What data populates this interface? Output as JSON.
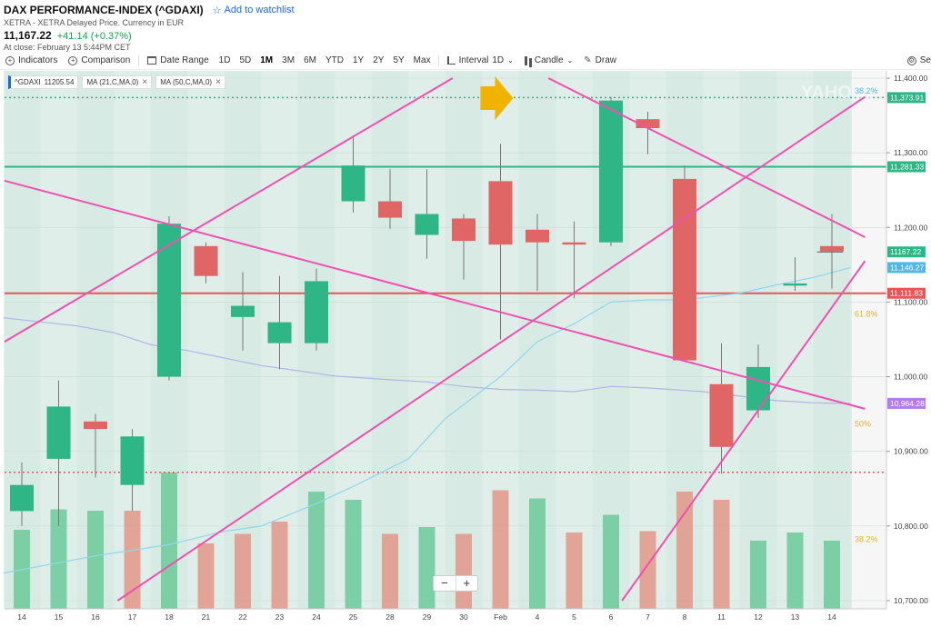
{
  "header": {
    "title": "DAX PERFORMANCE-INDEX (^GDAXI)",
    "watchlist_label": "Add to watchlist",
    "exchange": "XETRA - XETRA Delayed Price. Currency in EUR",
    "price": "11,167.22",
    "change": "+41.14 (+0.37%)",
    "close_time": "At close: February 13 5:44PM CET"
  },
  "toolbar": {
    "indicators": "Indicators",
    "comparison": "Comparison",
    "date_range": "Date Range",
    "ranges": [
      "1D",
      "5D",
      "1M",
      "3M",
      "6M",
      "YTD",
      "1Y",
      "2Y",
      "5Y",
      "Max"
    ],
    "selected_range": "1M",
    "interval": "Interval",
    "interval_value": "1D",
    "candle": "Candle",
    "draw": "Draw",
    "settings_partial": "Se"
  },
  "legend": {
    "symbol": "^GDAXI",
    "symbol_value": "11205.54",
    "ma21": "MA (21,C,MA,0)",
    "ma50": "MA (50,C,MA,0)"
  },
  "zoom": {
    "minus": "−",
    "plus": "+"
  },
  "chart_data": {
    "type": "candlestick",
    "ylim": [
      10700,
      11400
    ],
    "x_tick_labels": [
      "14",
      "15",
      "16",
      "17",
      "18",
      "21",
      "22",
      "23",
      "24",
      "25",
      "28",
      "29",
      "30",
      "Feb",
      "4",
      "5",
      "6",
      "7",
      "8",
      "11",
      "12",
      "13",
      "14"
    ],
    "y_tick_labels": [
      "11,400.00",
      "11,300.00",
      "11,200.00",
      "11,100.00",
      "11,000.00",
      "10,900.00",
      "10,800.00",
      "10,700.00"
    ],
    "candles": [
      {
        "open": 10820,
        "close": 10855,
        "high": 10885,
        "low": 10800
      },
      {
        "open": 10890,
        "close": 10960,
        "high": 10995,
        "low": 10800
      },
      {
        "open": 10940,
        "close": 10930,
        "high": 10950,
        "low": 10865
      },
      {
        "open": 10855,
        "close": 10920,
        "high": 10930,
        "low": 10820
      },
      {
        "open": 11000,
        "close": 11205,
        "high": 11215,
        "low": 10995
      },
      {
        "open": 11175,
        "close": 11135,
        "high": 11180,
        "low": 11125
      },
      {
        "open": 11080,
        "close": 11095,
        "high": 11140,
        "low": 11035
      },
      {
        "open": 11045,
        "close": 11073,
        "high": 11135,
        "low": 11010
      },
      {
        "open": 11045,
        "close": 11128,
        "high": 11145,
        "low": 11035
      },
      {
        "open": 11235,
        "close": 11283,
        "high": 11323,
        "low": 11220
      },
      {
        "open": 11235,
        "close": 11213,
        "high": 11278,
        "low": 11198
      },
      {
        "open": 11190,
        "close": 11218,
        "high": 11278,
        "low": 11158
      },
      {
        "open": 11212,
        "close": 11182,
        "high": 11218,
        "low": 11130
      },
      {
        "open": 11262,
        "close": 11177,
        "high": 11312,
        "low": 11050
      },
      {
        "open": 11197,
        "close": 11180,
        "high": 11218,
        "low": 11115
      },
      {
        "open": 11180,
        "close": 11177,
        "high": 11208,
        "low": 11105
      },
      {
        "open": 11180,
        "close": 11370,
        "high": 11375,
        "low": 11175
      },
      {
        "open": 11345,
        "close": 11333,
        "high": 11355,
        "low": 11298
      },
      {
        "open": 11265,
        "close": 11022,
        "high": 11283,
        "low": 11020
      },
      {
        "open": 10990,
        "close": 10906,
        "high": 11045,
        "low": 10870
      },
      {
        "open": 10955,
        "close": 11013,
        "high": 11043,
        "low": 10945
      },
      {
        "open": 11122,
        "close": 11125,
        "high": 11160,
        "low": 11115
      },
      {
        "open": 11175,
        "close": 11168,
        "high": 11218,
        "low": 11118
      }
    ],
    "volume_rel": [
      0.58,
      0.73,
      0.72,
      0.72,
      1.0,
      0.48,
      0.55,
      0.64,
      0.86,
      0.8,
      0.55,
      0.6,
      0.55,
      0.87,
      0.81,
      0.56,
      0.69,
      0.57,
      0.86,
      0.8,
      0.5,
      0.56,
      0.5
    ],
    "volume_up": [
      true,
      true,
      true,
      false,
      true,
      false,
      false,
      false,
      true,
      true,
      false,
      true,
      false,
      false,
      true,
      false,
      true,
      false,
      false,
      false,
      true,
      true,
      true
    ],
    "ma21": [
      [
        -0.5,
        10737
      ],
      [
        2,
        10760
      ],
      [
        4,
        10775
      ],
      [
        5.5,
        10793
      ],
      [
        6.5,
        10800
      ],
      [
        8,
        10830
      ],
      [
        9,
        10853
      ],
      [
        10.5,
        10890
      ],
      [
        11.5,
        10944
      ],
      [
        13,
        11000
      ],
      [
        14,
        11047
      ],
      [
        15,
        11071
      ],
      [
        16,
        11100
      ],
      [
        17,
        11103
      ],
      [
        18,
        11103
      ],
      [
        19.5,
        11112
      ],
      [
        20.5,
        11123
      ],
      [
        21.5,
        11133
      ],
      [
        22.5,
        11146
      ]
    ],
    "ma50": [
      [
        -0.5,
        11079
      ],
      [
        1.5,
        11068
      ],
      [
        2.5,
        11059
      ],
      [
        3.5,
        11043
      ],
      [
        4.5,
        11035
      ],
      [
        5.5,
        11025
      ],
      [
        6.5,
        11015
      ],
      [
        7.5,
        11008
      ],
      [
        8.5,
        11001
      ],
      [
        10,
        10996
      ],
      [
        11,
        10993
      ],
      [
        12,
        10987
      ],
      [
        13,
        10983
      ],
      [
        14,
        10982
      ],
      [
        15,
        10980
      ],
      [
        16,
        10987
      ],
      [
        17,
        10985
      ],
      [
        18.5,
        10980
      ],
      [
        19.5,
        10974
      ],
      [
        20.5,
        10968
      ],
      [
        21.5,
        10965
      ],
      [
        22.5,
        10964
      ]
    ],
    "horizontal_levels": [
      {
        "value": 11373.91,
        "label": "11,373.91",
        "color": "#2fb686",
        "dash": true
      },
      {
        "value": 11281.33,
        "label": "11,281.33",
        "color": "#2fb686",
        "dash": false
      },
      {
        "value": 11111.83,
        "label": "11,111.83",
        "color": "#e65656",
        "dash": false
      },
      {
        "value": 10872,
        "label": "",
        "color": "#e65656",
        "dash": true
      }
    ],
    "price_tags": [
      {
        "value": 11167.22,
        "label": "11167.22",
        "color": "#2fb686"
      },
      {
        "value": 11146.27,
        "label": "11,146.27",
        "color": "#4fb8e8"
      },
      {
        "value": 10964.28,
        "label": "10,964.28",
        "color": "#b57be8"
      }
    ],
    "fib_labels": [
      {
        "value": 11383,
        "label": "38.2%",
        "color": "#4fb8e8"
      },
      {
        "value": 11084,
        "label": "61.8%",
        "color": "#e6b422"
      },
      {
        "value": 10937,
        "label": "50%",
        "color": "#e6b422"
      },
      {
        "value": 10782,
        "label": "38.2%",
        "color": "#e6b422"
      }
    ],
    "trend_lines": [
      [
        [
          -0.5,
          11046
        ],
        [
          11.7,
          11400
        ]
      ],
      [
        [
          2.6,
          10700
        ],
        [
          22.9,
          11375
        ]
      ],
      [
        [
          -0.5,
          11263
        ],
        [
          22.9,
          10957
        ]
      ],
      [
        [
          14.3,
          11400
        ],
        [
          22.9,
          11187
        ]
      ],
      [
        [
          16.3,
          10700
        ],
        [
          22.9,
          11155
        ]
      ]
    ],
    "colors": {
      "up": "#2fb686",
      "down": "#e06666",
      "ma21": "#8fd8ec",
      "ma50": "#b4b4e6",
      "trend": "#f050b0",
      "arrow": "#f0b400",
      "bg": "#dfeee9"
    }
  }
}
